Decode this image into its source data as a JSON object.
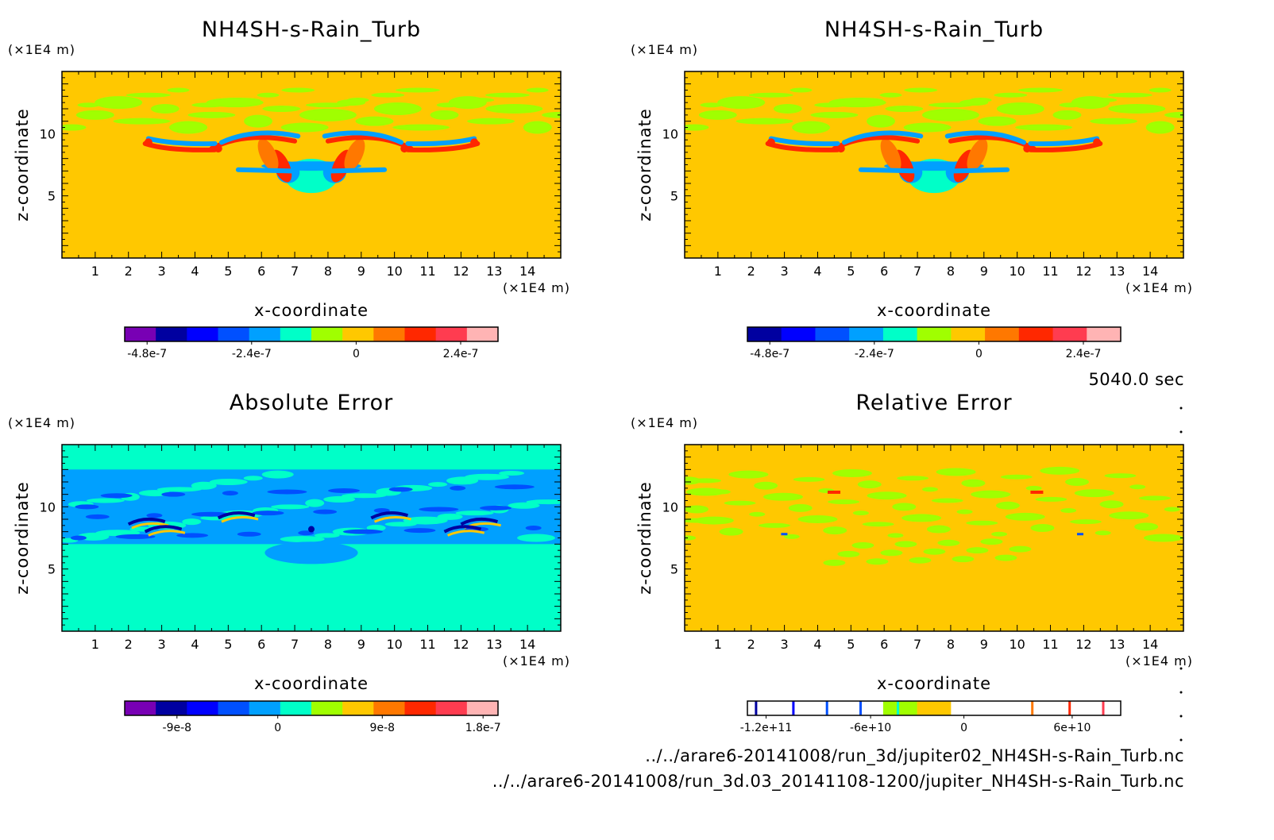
{
  "time_label": "5040.0 sec",
  "files": [
    "../../arare6-20141008/run_3d/jupiter02_NH4SH-s-Rain_Turb.nc",
    "../../arare6-20141008/run_3d.03_20141108-1200/jupiter_NH4SH-s-Rain_Turb.nc"
  ],
  "colors": {
    "background_top": "#ffc800",
    "background_abs": "#00ffc8",
    "colormap": [
      "#7800b4",
      "#0000a0",
      "#0000ff",
      "#0050ff",
      "#00a0ff",
      "#00ffc8",
      "#a0ff00",
      "#ffc800",
      "#ff7800",
      "#ff2800",
      "#ff3c50",
      "#ffb4b4"
    ]
  },
  "chart_data": [
    {
      "type": "heatmap",
      "title": "NH4SH-s-Rain_Turb",
      "xlabel": "x-coordinate",
      "ylabel": "z-coordinate",
      "x_unit": "(×1E4 m)",
      "y_unit": "(×1E4 m)",
      "x_ticks": [
        1,
        2,
        3,
        4,
        5,
        6,
        7,
        8,
        9,
        10,
        11,
        12,
        13,
        14
      ],
      "y_ticks": [
        5,
        10
      ],
      "xlim": [
        0,
        15
      ],
      "ylim": [
        0,
        15
      ],
      "colorbar_ticks": [
        "-4.8e-7",
        "-2.4e-7",
        "0",
        "2.4e-7"
      ],
      "colorbar_levels": 12,
      "background_value": 0
    },
    {
      "type": "heatmap",
      "title": "NH4SH-s-Rain_Turb",
      "xlabel": "x-coordinate",
      "ylabel": "z-coordinate",
      "x_unit": "(×1E4 m)",
      "y_unit": "(×1E4 m)",
      "x_ticks": [
        1,
        2,
        3,
        4,
        5,
        6,
        7,
        8,
        9,
        10,
        11,
        12,
        13,
        14
      ],
      "y_ticks": [
        5,
        10
      ],
      "xlim": [
        0,
        15
      ],
      "ylim": [
        0,
        15
      ],
      "colorbar_ticks": [
        "-4.8e-7",
        "-2.4e-7",
        "0",
        "2.4e-7"
      ],
      "colorbar_levels": 11,
      "background_value": 0
    },
    {
      "type": "heatmap",
      "title": "Absolute Error",
      "xlabel": "x-coordinate",
      "ylabel": "z-coordinate",
      "x_unit": "(×1E4 m)",
      "y_unit": "(×1E4 m)",
      "x_ticks": [
        1,
        2,
        3,
        4,
        5,
        6,
        7,
        8,
        9,
        10,
        11,
        12,
        13,
        14
      ],
      "y_ticks": [
        5,
        10
      ],
      "xlim": [
        0,
        15
      ],
      "ylim": [
        0,
        15
      ],
      "colorbar_ticks": [
        "-9e-8",
        "0",
        "9e-8",
        "1.8e-7"
      ],
      "colorbar_levels": 12,
      "background_value": 0
    },
    {
      "type": "heatmap",
      "title": "Relative Error",
      "xlabel": "x-coordinate",
      "ylabel": "z-coordinate",
      "x_unit": "(×1E4 m)",
      "y_unit": "(×1E4 m)",
      "x_ticks": [
        1,
        2,
        3,
        4,
        5,
        6,
        7,
        8,
        9,
        10,
        11,
        12,
        13,
        14
      ],
      "y_ticks": [
        5,
        10
      ],
      "xlim": [
        0,
        15
      ],
      "ylim": [
        0,
        15
      ],
      "colorbar_ticks": [
        "-1.2e+11",
        "-6e+10",
        "0",
        "6e+10"
      ],
      "colorbar_levels": 11,
      "background_value": 0
    }
  ]
}
